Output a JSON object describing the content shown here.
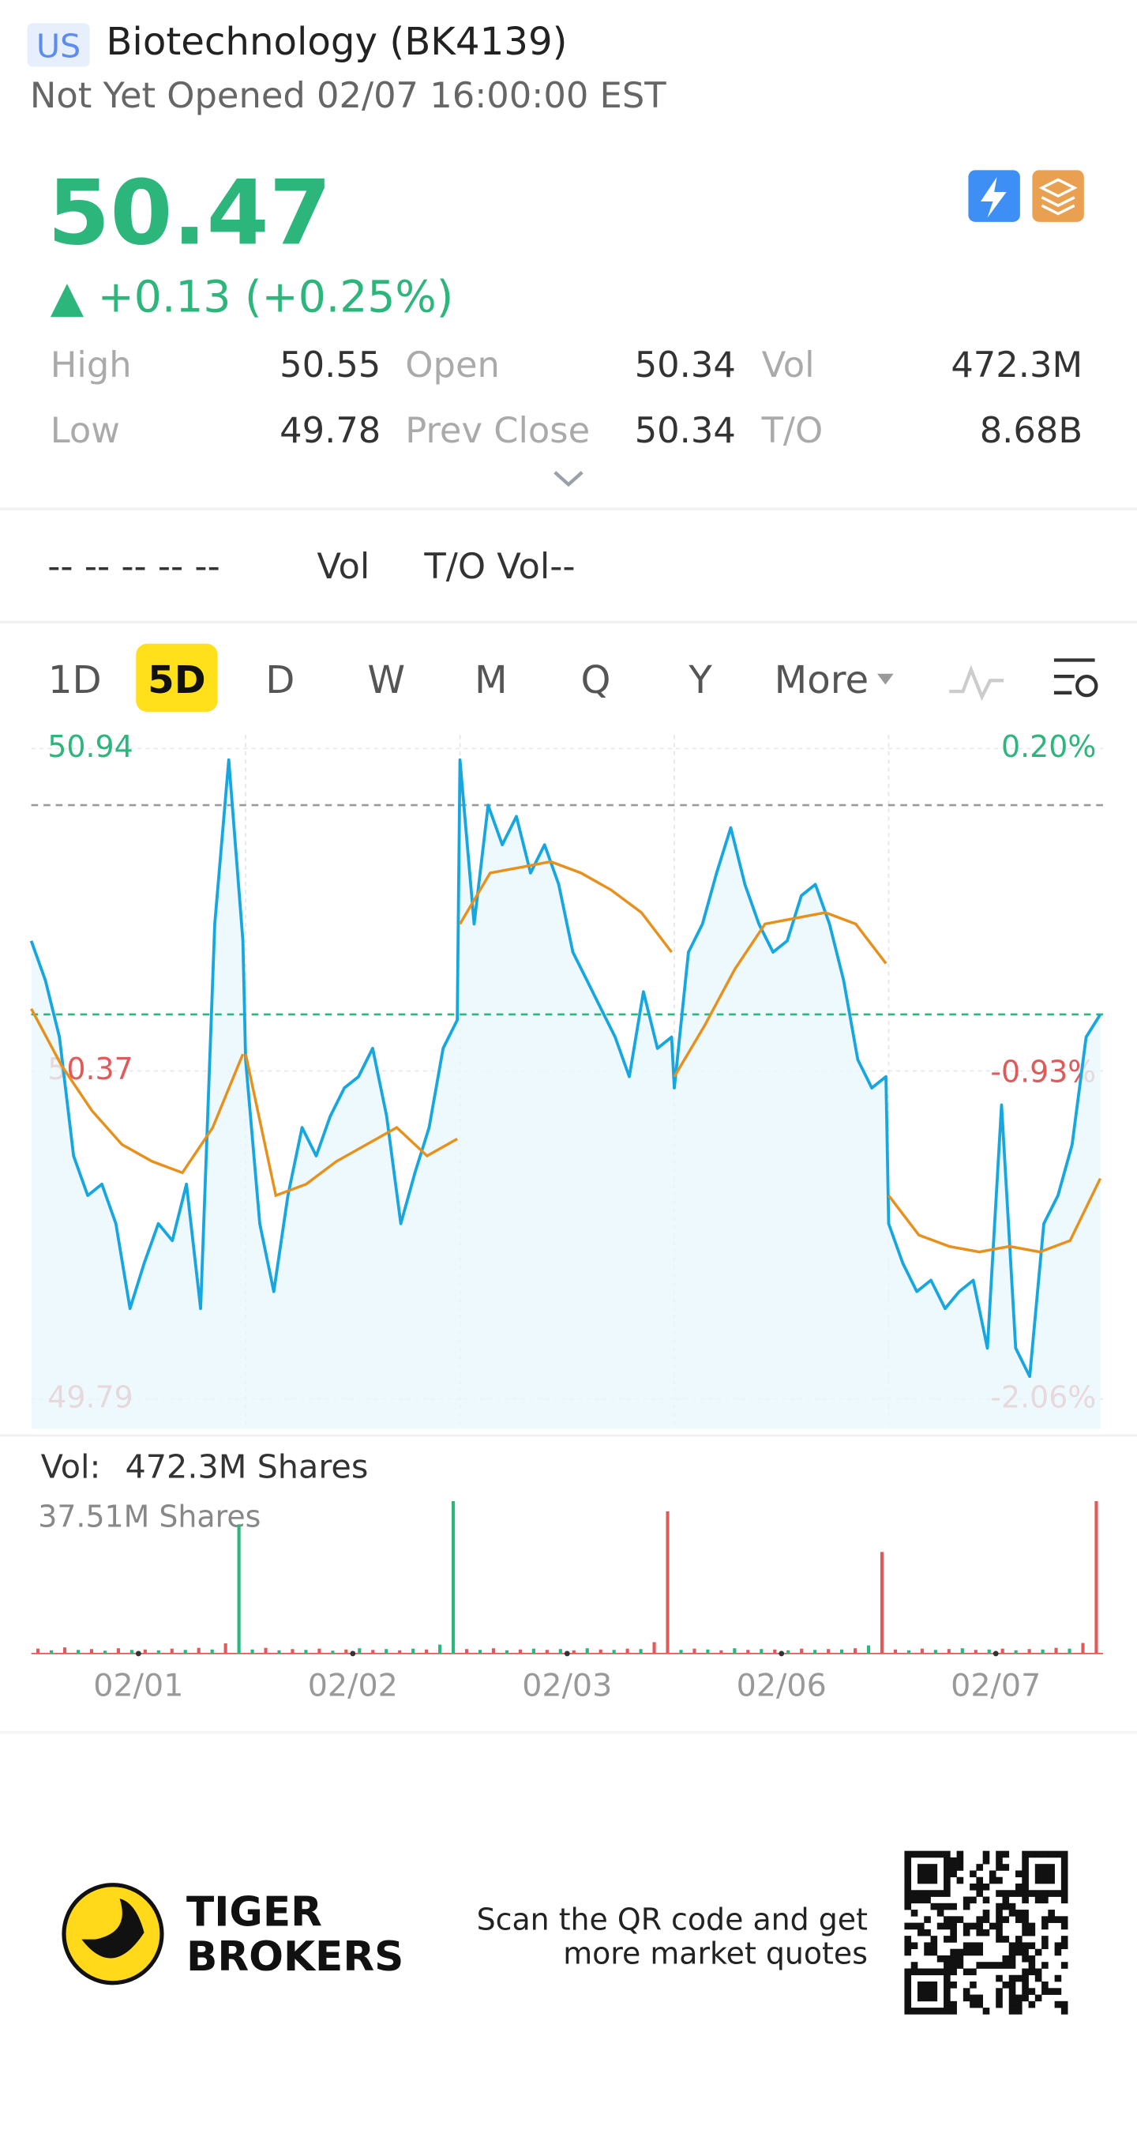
{
  "header": {
    "market": "US",
    "name": "Biotechnology (BK4139)",
    "status": "Not Yet Opened 02/07 16:00:00 EST"
  },
  "quote": {
    "price": "50.47",
    "change": "▲ +0.13 (+0.25%)",
    "stats": [
      {
        "label": "High",
        "value": "50.55"
      },
      {
        "label": "Open",
        "value": "50.34"
      },
      {
        "label": "Vol",
        "value": "472.3M"
      },
      {
        "label": "Low",
        "value": "49.78"
      },
      {
        "label": "Prev Close",
        "value": "50.34"
      },
      {
        "label": "T/O",
        "value": "8.68B"
      }
    ]
  },
  "indicators": [
    "-- -- -- -- --",
    "Vol",
    "T/O Vol--"
  ],
  "tabs": {
    "items": [
      "1D",
      "5D",
      "D",
      "W",
      "M",
      "Q",
      "Y",
      "More"
    ],
    "active": 1
  },
  "chart_data": {
    "type": "line",
    "categories": [
      "02/01",
      "02/02",
      "02/03",
      "02/06",
      "02/07"
    ],
    "ylim": [
      49.79,
      50.94
    ],
    "yticks": [
      50.94,
      50.37,
      49.79
    ],
    "y2lim": [
      -2.06,
      0.2
    ],
    "y2ticks": [
      {
        "value": 0.2,
        "label": "0.20%"
      },
      {
        "value": -0.93,
        "label": "-0.93%"
      },
      {
        "value": -2.06,
        "label": "-2.06%"
      }
    ],
    "reference_lines": [
      {
        "value": 50.84,
        "color": "#9a9a9a"
      },
      {
        "value": 50.47,
        "color": "#2db67c"
      }
    ],
    "series": [
      {
        "name": "Price",
        "color": "#16a6e0",
        "values": [
          [
            50.6,
            50.53,
            50.43,
            50.22,
            50.15,
            50.17,
            50.1,
            49.95,
            50.03,
            50.1,
            50.07,
            50.17,
            49.95,
            50.63,
            50.92,
            50.6
          ],
          [
            50.39,
            50.1,
            49.98,
            50.15,
            50.27,
            50.22,
            50.29,
            50.34,
            50.36,
            50.41,
            50.29,
            50.1,
            50.19,
            50.27,
            50.41,
            50.46
          ],
          [
            50.92,
            50.63,
            50.84,
            50.77,
            50.82,
            50.72,
            50.77,
            50.7,
            50.58,
            50.53,
            50.48,
            50.43,
            50.36,
            50.51,
            50.41,
            50.43
          ],
          [
            50.34,
            50.58,
            50.63,
            50.72,
            50.8,
            50.7,
            50.63,
            50.58,
            50.6,
            50.68,
            50.7,
            50.63,
            50.53,
            50.39,
            50.34,
            50.36
          ],
          [
            50.1,
            50.03,
            49.98,
            50.0,
            49.95,
            49.98,
            50.0,
            49.88,
            50.31,
            49.88,
            49.83,
            50.1,
            50.15,
            50.24,
            50.43,
            50.47
          ]
        ]
      },
      {
        "name": "Average",
        "color": "#e8901c",
        "values": [
          [
            50.48,
            50.38,
            50.3,
            50.24,
            50.21,
            50.19,
            50.27,
            50.4
          ],
          [
            50.4,
            50.15,
            50.17,
            50.21,
            50.24,
            50.27,
            50.22,
            50.25
          ],
          [
            50.63,
            50.72,
            50.73,
            50.74,
            50.72,
            50.69,
            50.65,
            50.58
          ],
          [
            50.36,
            50.45,
            50.55,
            50.63,
            50.64,
            50.65,
            50.63,
            50.56
          ],
          [
            50.15,
            50.08,
            50.06,
            50.05,
            50.06,
            50.05,
            50.07,
            50.18
          ]
        ]
      }
    ],
    "volume": {
      "title": "Vol:",
      "total": "472.3M Shares",
      "max_label": "37.51M Shares",
      "max": 37.51,
      "values": [
        [
          1.2,
          0.8,
          1.5,
          0.9,
          1.1,
          0.7,
          1.3,
          0.9,
          1.0,
          0.8,
          1.2,
          0.9,
          1.4,
          1.0,
          2.5,
          31.8
        ],
        [
          1.0,
          1.4,
          0.8,
          1.1,
          0.9,
          1.2,
          0.7,
          1.0,
          1.3,
          0.9,
          1.1,
          0.8,
          1.2,
          1.0,
          2.2,
          37.51
        ],
        [
          1.1,
          0.9,
          1.3,
          0.8,
          1.0,
          1.2,
          0.9,
          1.1,
          0.8,
          1.3,
          1.0,
          0.9,
          1.2,
          1.1,
          2.8,
          35.0
        ],
        [
          0.9,
          1.2,
          1.0,
          0.8,
          1.3,
          0.9,
          1.1,
          1.0,
          0.8,
          1.2,
          0.9,
          1.1,
          1.0,
          1.3,
          2.0,
          25.0
        ],
        [
          1.0,
          0.8,
          1.2,
          0.9,
          1.1,
          1.3,
          0.9,
          1.0,
          1.2,
          0.8,
          1.1,
          1.0,
          1.4,
          1.2,
          2.6,
          37.51
        ]
      ],
      "colors": [
        [
          "#e05a5a",
          "#2db67c",
          "#e05a5a",
          "#2db67c",
          "#e05a5a",
          "#2db67c",
          "#e05a5a",
          "#2db67c",
          "#e05a5a",
          "#2db67c",
          "#e05a5a",
          "#2db67c",
          "#e05a5a",
          "#2db67c",
          "#e05a5a",
          "#2db67c"
        ],
        [
          "#2db67c",
          "#e05a5a",
          "#2db67c",
          "#e05a5a",
          "#2db67c",
          "#e05a5a",
          "#2db67c",
          "#e05a5a",
          "#2db67c",
          "#e05a5a",
          "#2db67c",
          "#e05a5a",
          "#2db67c",
          "#e05a5a",
          "#2db67c",
          "#2db67c"
        ],
        [
          "#e05a5a",
          "#2db67c",
          "#e05a5a",
          "#2db67c",
          "#e05a5a",
          "#2db67c",
          "#e05a5a",
          "#2db67c",
          "#e05a5a",
          "#2db67c",
          "#e05a5a",
          "#2db67c",
          "#e05a5a",
          "#2db67c",
          "#e05a5a",
          "#e05a5a"
        ],
        [
          "#2db67c",
          "#e05a5a",
          "#2db67c",
          "#e05a5a",
          "#2db67c",
          "#e05a5a",
          "#2db67c",
          "#e05a5a",
          "#2db67c",
          "#e05a5a",
          "#2db67c",
          "#e05a5a",
          "#2db67c",
          "#e05a5a",
          "#2db67c",
          "#e05a5a"
        ],
        [
          "#e05a5a",
          "#2db67c",
          "#e05a5a",
          "#2db67c",
          "#e05a5a",
          "#2db67c",
          "#e05a5a",
          "#2db67c",
          "#e05a5a",
          "#2db67c",
          "#e05a5a",
          "#2db67c",
          "#e05a5a",
          "#2db67c",
          "#e05a5a",
          "#e05a5a"
        ]
      ]
    }
  },
  "footer": {
    "brand": [
      "TIGER",
      "BROKERS"
    ],
    "prompt": [
      "Scan the QR code and get",
      "more market quotes"
    ]
  }
}
